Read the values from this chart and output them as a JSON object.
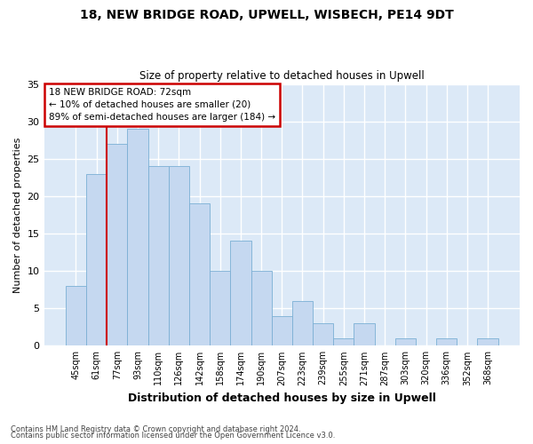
{
  "title1": "18, NEW BRIDGE ROAD, UPWELL, WISBECH, PE14 9DT",
  "title2": "Size of property relative to detached houses in Upwell",
  "xlabel": "Distribution of detached houses by size in Upwell",
  "ylabel": "Number of detached properties",
  "categories": [
    "45sqm",
    "61sqm",
    "77sqm",
    "93sqm",
    "110sqm",
    "126sqm",
    "142sqm",
    "158sqm",
    "174sqm",
    "190sqm",
    "207sqm",
    "223sqm",
    "239sqm",
    "255sqm",
    "271sqm",
    "287sqm",
    "303sqm",
    "320sqm",
    "336sqm",
    "352sqm",
    "368sqm"
  ],
  "values": [
    8,
    23,
    27,
    29,
    24,
    24,
    19,
    10,
    14,
    10,
    4,
    6,
    3,
    1,
    3,
    0,
    1,
    0,
    1,
    0,
    1
  ],
  "bar_color": "#c5d8f0",
  "bar_edge_color": "#7bafd4",
  "bg_color": "#dce9f7",
  "grid_color": "#ffffff",
  "redline_bar_index": 2,
  "annotation_text": "18 NEW BRIDGE ROAD: 72sqm\n← 10% of detached houses are smaller (20)\n89% of semi-detached houses are larger (184) →",
  "annotation_box_color": "#ffffff",
  "annotation_box_edge": "#cc0000",
  "footer1": "Contains HM Land Registry data © Crown copyright and database right 2024.",
  "footer2": "Contains public sector information licensed under the Open Government Licence v3.0.",
  "ylim": [
    0,
    35
  ],
  "yticks": [
    0,
    5,
    10,
    15,
    20,
    25,
    30,
    35
  ]
}
